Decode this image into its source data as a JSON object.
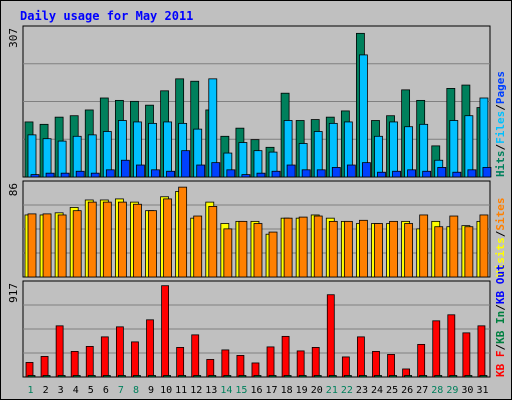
{
  "chart_data": {
    "type": "bar",
    "title": "Daily usage for May 2011",
    "categories": [
      "1",
      "2",
      "3",
      "4",
      "5",
      "6",
      "7",
      "8",
      "9",
      "10",
      "11",
      "12",
      "13",
      "14",
      "15",
      "16",
      "17",
      "18",
      "19",
      "20",
      "21",
      "22",
      "23",
      "24",
      "25",
      "26",
      "27",
      "28",
      "29",
      "30",
      "31"
    ],
    "weekend_days": [
      "1",
      "7",
      "8",
      "14",
      "15",
      "21",
      "22",
      "28",
      "29"
    ],
    "colors": {
      "hits": "#00805c",
      "files": "#00c0ff",
      "pages": "#0040ff",
      "visits": "#ffff00",
      "sites": "#ff8000",
      "kb_in": "#008040",
      "kb_out": "#0000ff",
      "kb_f": "#ff0000",
      "title": "#0000ff",
      "background": "#c0c0c0",
      "plot": "#c0c0c0",
      "weekday_label": "#000000",
      "weekend_label": "#00805c"
    },
    "panels": [
      {
        "id": "hits-files-pages",
        "max_label": "307",
        "ylim": [
          0,
          307
        ],
        "legend": [
          {
            "label": "Hits",
            "color": "#00805c"
          },
          {
            "label": "Files",
            "color": "#00c0ff"
          },
          {
            "label": "Pages",
            "color": "#0040ff"
          }
        ],
        "series": [
          {
            "name": "Hits",
            "values": [
              115,
              110,
              125,
              128,
              140,
              165,
              160,
              158,
              150,
              180,
              205,
              200,
              140,
              85,
              102,
              78,
              62,
              175,
              118,
              120,
              125,
              138,
              300,
              118,
              128,
              182,
              160,
              65,
              185,
              192,
              145
            ]
          },
          {
            "name": "Files",
            "values": [
              88,
              80,
              75,
              85,
              88,
              95,
              118,
              115,
              112,
              115,
              112,
              100,
              205,
              50,
              72,
              55,
              52,
              118,
              70,
              95,
              112,
              115,
              255,
              85,
              115,
              105,
              110,
              35,
              118,
              128,
              165
            ]
          },
          {
            "name": "Pages",
            "values": [
              5,
              8,
              8,
              12,
              8,
              15,
              35,
              25,
              15,
              12,
              55,
              25,
              30,
              15,
              5,
              8,
              12,
              25,
              15,
              15,
              20,
              25,
              30,
              10,
              12,
              15,
              12,
              20,
              10,
              15,
              20
            ]
          }
        ]
      },
      {
        "id": "visits-sites",
        "max_label": "86",
        "ylim": [
          0,
          86
        ],
        "legend": [
          {
            "label": "Visits",
            "color": "#ffff00"
          },
          {
            "label": "Sites",
            "color": "#ff8000"
          }
        ],
        "series": [
          {
            "name": "Visits",
            "values": [
              58,
              58,
              60,
              65,
              72,
              72,
              73,
              70,
              62,
              75,
              80,
              55,
              70,
              50,
              52,
              52,
              40,
              55,
              55,
              58,
              55,
              52,
              50,
              50,
              50,
              52,
              45,
              52,
              47,
              48,
              52
            ]
          },
          {
            "name": "Sites",
            "values": [
              59,
              59,
              58,
              62,
              70,
              70,
              70,
              68,
              62,
              73,
              84,
              57,
              66,
              45,
              52,
              50,
              42,
              55,
              56,
              57,
              52,
              52,
              53,
              50,
              52,
              50,
              58,
              47,
              57,
              47,
              58
            ]
          }
        ]
      },
      {
        "id": "kbf-kbin-kbout",
        "max_label": "917",
        "ylim": [
          0,
          917
        ],
        "legend": [
          {
            "label": "KB F",
            "color": "#ff0000"
          },
          {
            "label": "KB In",
            "color": "#008040"
          },
          {
            "label": "KB Out",
            "color": "#0000ff"
          }
        ],
        "series": [
          {
            "name": "KB F",
            "values": [
              145,
              205,
              510,
              255,
              305,
              400,
              500,
              350,
              570,
              910,
              295,
              420,
              175,
              270,
              215,
              140,
              300,
              405,
              260,
              295,
              820,
              200,
              400,
              255,
              225,
              80,
              325,
              560,
              620,
              440,
              510
            ]
          },
          {
            "name": "KB In",
            "values": [
              15,
              15,
              15,
              15,
              15,
              15,
              15,
              15,
              15,
              15,
              15,
              15,
              15,
              15,
              15,
              15,
              15,
              15,
              15,
              15,
              15,
              15,
              15,
              15,
              15,
              15,
              15,
              15,
              15,
              15,
              15
            ]
          },
          {
            "name": "KB Out",
            "values": [
              0,
              0,
              0,
              0,
              0,
              0,
              0,
              0,
              0,
              0,
              0,
              0,
              0,
              0,
              0,
              0,
              0,
              0,
              0,
              0,
              0,
              0,
              0,
              0,
              0,
              0,
              0,
              0,
              0,
              0,
              0
            ]
          }
        ]
      }
    ]
  }
}
